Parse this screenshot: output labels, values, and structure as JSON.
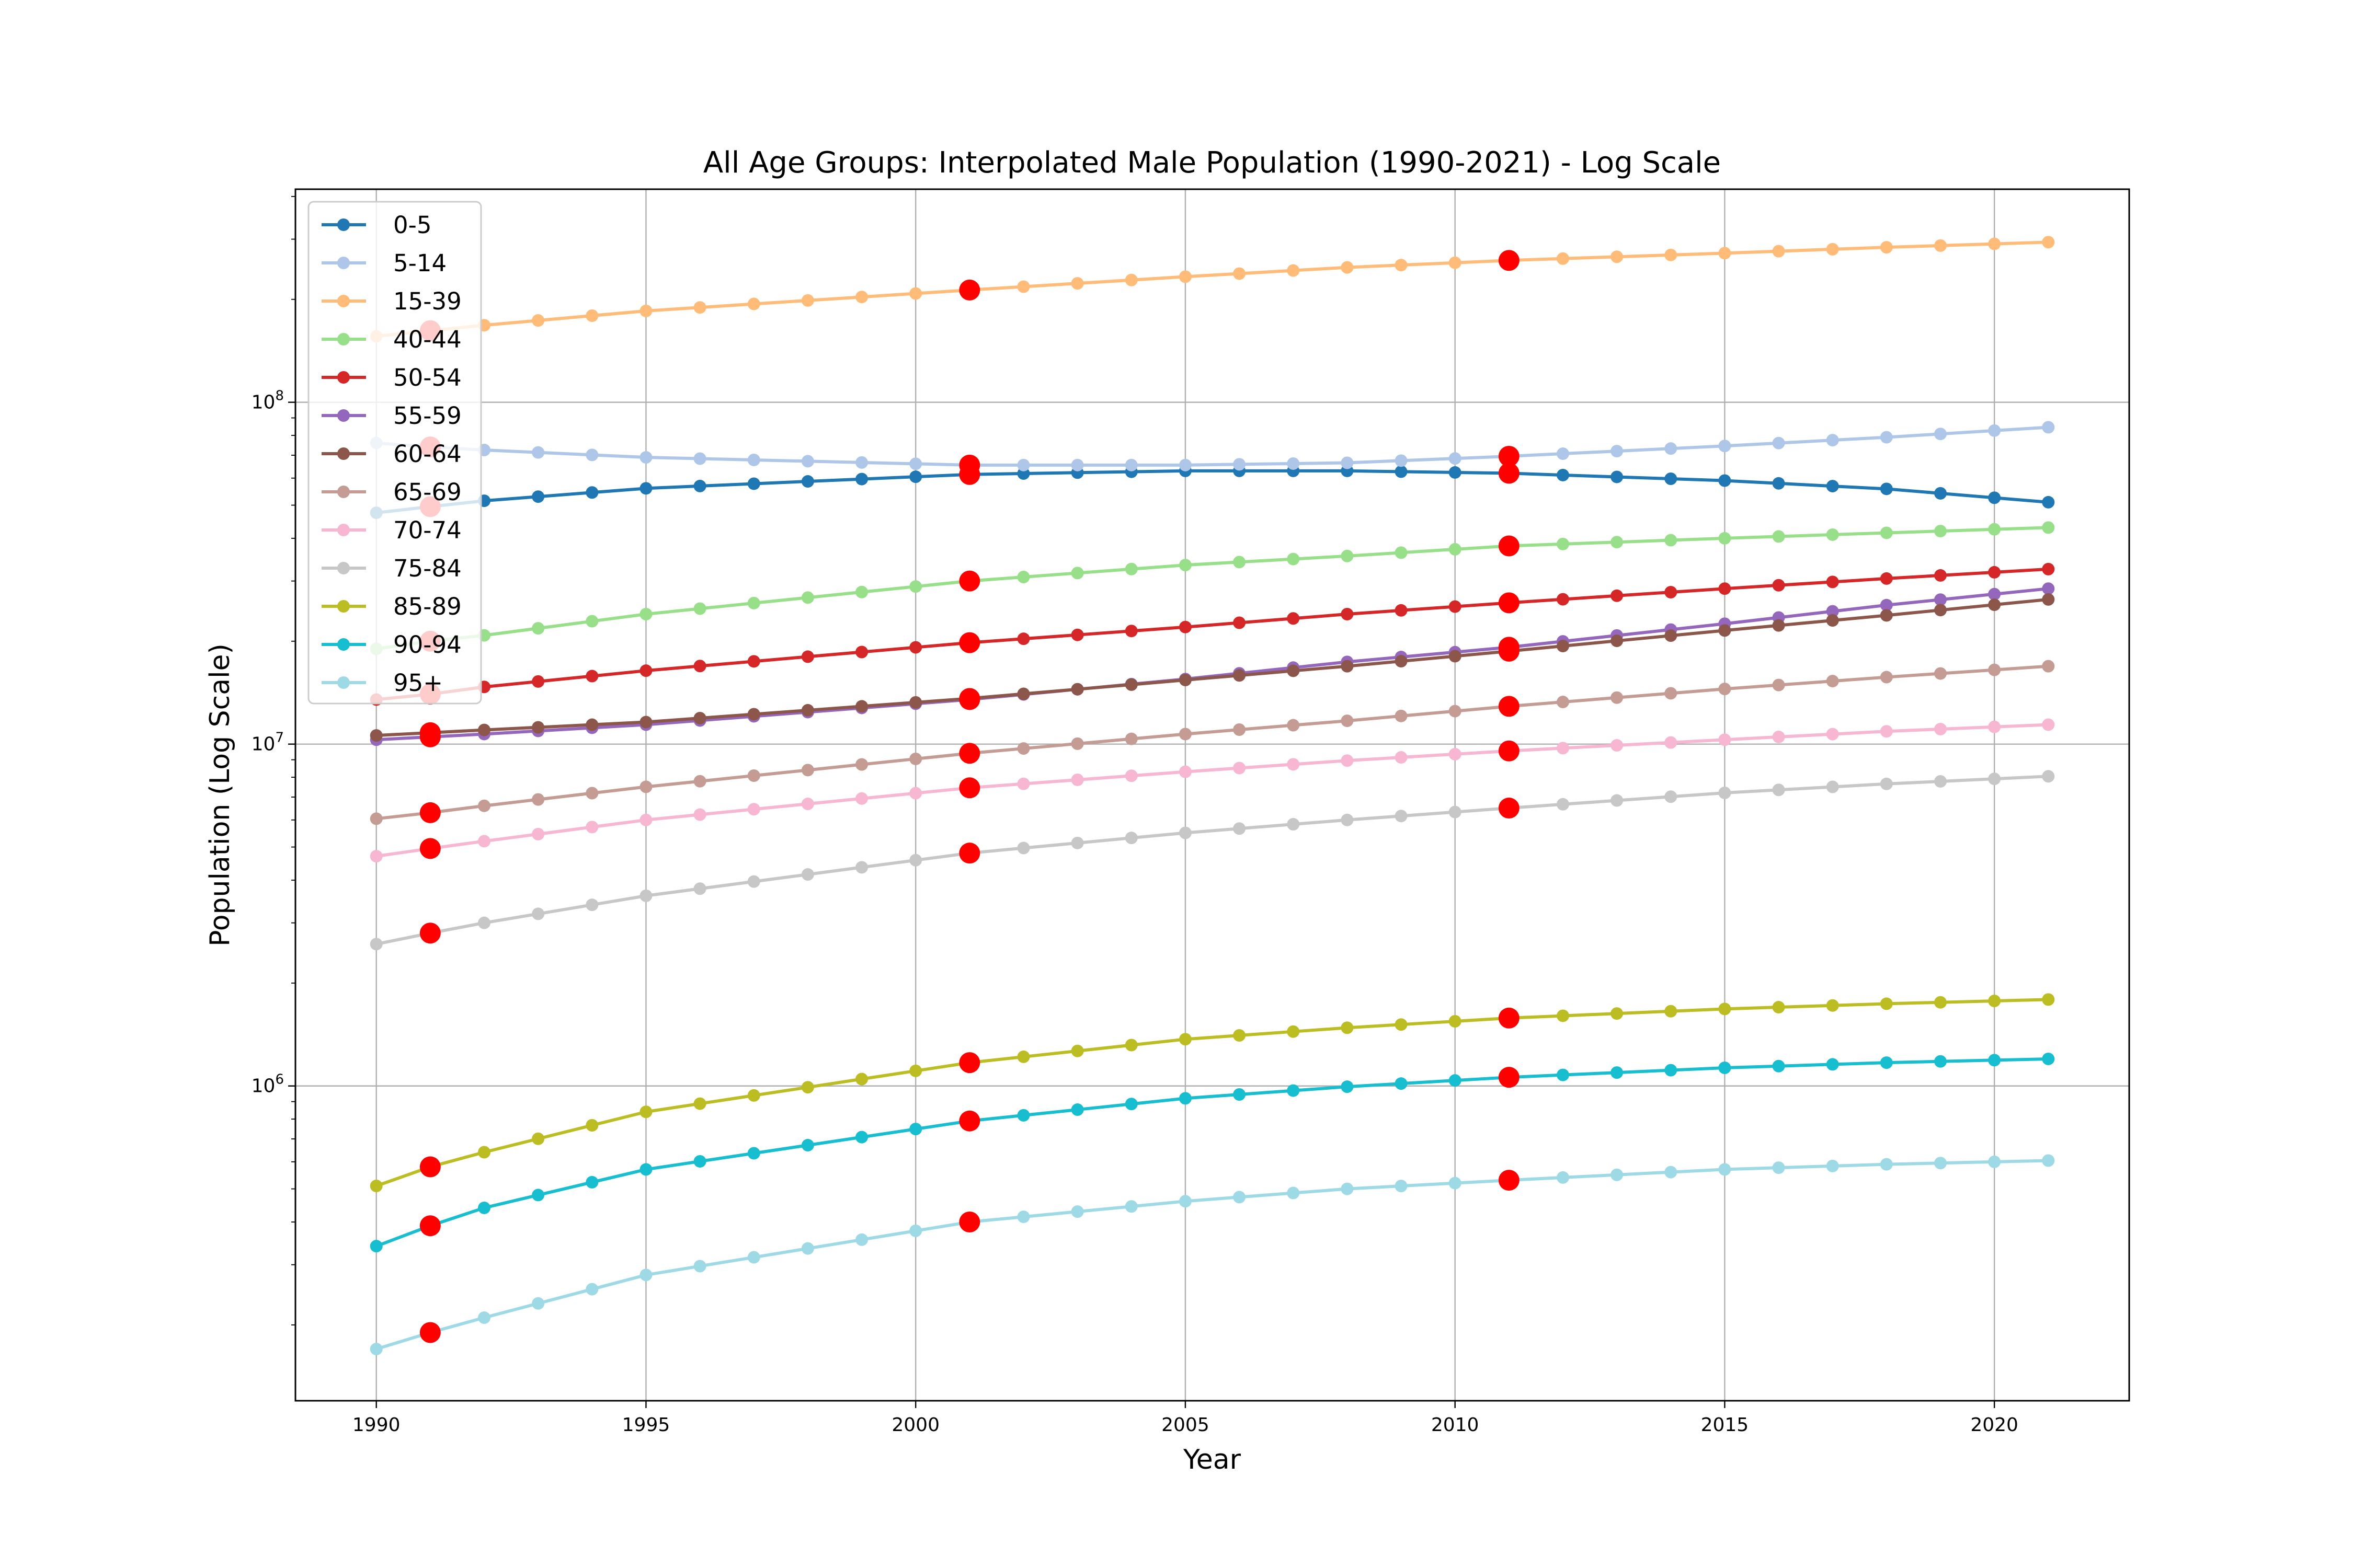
{
  "chart_data": {
    "type": "line",
    "title": "All Age Groups: Interpolated Male Population (1990-2021) - Log Scale",
    "xlabel": "Year",
    "ylabel": "Population (Log Scale)",
    "yscale": "log",
    "xlim": [
      1988.5,
      2022.5
    ],
    "ylim": [
      120000,
      420000000
    ],
    "x_ticks": [
      1990,
      1995,
      2000,
      2005,
      2010,
      2015,
      2020
    ],
    "y_ticks": [
      {
        "value": 1000000,
        "base": "10",
        "exp": "6"
      },
      {
        "value": 10000000,
        "base": "10",
        "exp": "7"
      },
      {
        "value": 100000000,
        "base": "10",
        "exp": "8"
      }
    ],
    "grid": true,
    "legend_position": "upper left",
    "x": [
      1990,
      1991,
      1992,
      1993,
      1994,
      1995,
      1996,
      1997,
      1998,
      1999,
      2000,
      2001,
      2002,
      2003,
      2004,
      2005,
      2006,
      2007,
      2008,
      2009,
      2010,
      2011,
      2012,
      2013,
      2014,
      2015,
      2016,
      2017,
      2018,
      2019,
      2020,
      2021
    ],
    "census_years": [
      1991,
      2001,
      2011
    ],
    "census_marker_color": "#ff0000",
    "series": [
      {
        "name": "0-5",
        "color": "#1f77b4",
        "anchors": [
          [
            1990,
            47500000
          ],
          [
            1991,
            49500000
          ],
          [
            1992,
            51500000
          ],
          [
            1995,
            56000000
          ],
          [
            2001,
            61500000
          ],
          [
            2005,
            63000000
          ],
          [
            2008,
            63000000
          ],
          [
            2011,
            62000000
          ],
          [
            2015,
            59000000
          ],
          [
            2018,
            55800000
          ],
          [
            2021,
            51000000
          ]
        ]
      },
      {
        "name": "5-14",
        "color": "#aec7e8",
        "anchors": [
          [
            1990,
            76000000
          ],
          [
            1991,
            74000000
          ],
          [
            1992,
            72500000
          ],
          [
            1995,
            69000000
          ],
          [
            2001,
            65500000
          ],
          [
            2005,
            65500000
          ],
          [
            2008,
            66500000
          ],
          [
            2011,
            69500000
          ],
          [
            2015,
            74500000
          ],
          [
            2018,
            79000000
          ],
          [
            2021,
            84500000
          ]
        ]
      },
      {
        "name": "15-39",
        "color": "#ffbb78",
        "anchors": [
          [
            1990,
            156000000
          ],
          [
            1991,
            162000000
          ],
          [
            1992,
            168000000
          ],
          [
            1995,
            185000000
          ],
          [
            2001,
            213000000
          ],
          [
            2005,
            233000000
          ],
          [
            2008,
            248000000
          ],
          [
            2011,
            260000000
          ],
          [
            2015,
            273000000
          ],
          [
            2018,
            284000000
          ],
          [
            2021,
            294000000
          ]
        ]
      },
      {
        "name": "40-44",
        "color": "#98df8a",
        "anchors": [
          [
            1990,
            19000000
          ],
          [
            1991,
            20000000
          ],
          [
            1992,
            20800000
          ],
          [
            1995,
            24000000
          ],
          [
            2001,
            30000000
          ],
          [
            2005,
            33400000
          ],
          [
            2008,
            35500000
          ],
          [
            2011,
            38000000
          ],
          [
            2015,
            40000000
          ],
          [
            2018,
            41500000
          ],
          [
            2021,
            43000000
          ]
        ]
      },
      {
        "name": "50-54",
        "color": "#d62728",
        "anchors": [
          [
            1990,
            13500000
          ],
          [
            1991,
            14000000
          ],
          [
            1992,
            14700000
          ],
          [
            1995,
            16400000
          ],
          [
            2001,
            19800000
          ],
          [
            2005,
            22000000
          ],
          [
            2008,
            24000000
          ],
          [
            2011,
            25900000
          ],
          [
            2015,
            28500000
          ],
          [
            2018,
            30500000
          ],
          [
            2021,
            32500000
          ]
        ]
      },
      {
        "name": "55-59",
        "color": "#9467bd",
        "anchors": [
          [
            1990,
            10300000
          ],
          [
            1991,
            10500000
          ],
          [
            1992,
            10700000
          ],
          [
            1995,
            11400000
          ],
          [
            2001,
            13500000
          ],
          [
            2005,
            15500000
          ],
          [
            2008,
            17400000
          ],
          [
            2011,
            19200000
          ],
          [
            2015,
            22500000
          ],
          [
            2018,
            25500000
          ],
          [
            2021,
            28500000
          ]
        ]
      },
      {
        "name": "60-64",
        "color": "#8c564b",
        "anchors": [
          [
            1990,
            10600000
          ],
          [
            1991,
            10800000
          ],
          [
            1992,
            11000000
          ],
          [
            1995,
            11600000
          ],
          [
            2001,
            13600000
          ],
          [
            2005,
            15400000
          ],
          [
            2008,
            16900000
          ],
          [
            2011,
            18700000
          ],
          [
            2015,
            21500000
          ],
          [
            2018,
            23800000
          ],
          [
            2021,
            26500000
          ]
        ]
      },
      {
        "name": "65-69",
        "color": "#c49c94",
        "anchors": [
          [
            1990,
            6050000
          ],
          [
            1991,
            6300000
          ],
          [
            1992,
            6600000
          ],
          [
            1995,
            7500000
          ],
          [
            2001,
            9400000
          ],
          [
            2005,
            10700000
          ],
          [
            2008,
            11700000
          ],
          [
            2011,
            12900000
          ],
          [
            2015,
            14500000
          ],
          [
            2018,
            15700000
          ],
          [
            2021,
            16900000
          ]
        ]
      },
      {
        "name": "70-74",
        "color": "#f7b6d2",
        "anchors": [
          [
            1990,
            4700000
          ],
          [
            1991,
            4950000
          ],
          [
            1992,
            5200000
          ],
          [
            1995,
            6000000
          ],
          [
            2001,
            7450000
          ],
          [
            2005,
            8300000
          ],
          [
            2008,
            8950000
          ],
          [
            2011,
            9550000
          ],
          [
            2015,
            10300000
          ],
          [
            2018,
            10900000
          ],
          [
            2021,
            11400000
          ]
        ]
      },
      {
        "name": "75-84",
        "color": "#c7c7c7",
        "anchors": [
          [
            1990,
            2600000
          ],
          [
            1991,
            2800000
          ],
          [
            1992,
            3000000
          ],
          [
            1995,
            3600000
          ],
          [
            2001,
            4800000
          ],
          [
            2005,
            5500000
          ],
          [
            2008,
            6000000
          ],
          [
            2011,
            6500000
          ],
          [
            2015,
            7200000
          ],
          [
            2018,
            7650000
          ],
          [
            2021,
            8050000
          ]
        ]
      },
      {
        "name": "85-89",
        "color": "#bcbd22",
        "anchors": [
          [
            1990,
            510000
          ],
          [
            1991,
            580000
          ],
          [
            1992,
            640000
          ],
          [
            1995,
            840000
          ],
          [
            2001,
            1170000
          ],
          [
            2005,
            1370000
          ],
          [
            2008,
            1480000
          ],
          [
            2011,
            1580000
          ],
          [
            2015,
            1680000
          ],
          [
            2018,
            1740000
          ],
          [
            2021,
            1790000
          ]
        ]
      },
      {
        "name": "90-94",
        "color": "#17becf",
        "anchors": [
          [
            1990,
            340000
          ],
          [
            1991,
            390000
          ],
          [
            1992,
            440000
          ],
          [
            1995,
            570000
          ],
          [
            2001,
            790000
          ],
          [
            2005,
            920000
          ],
          [
            2008,
            995000
          ],
          [
            2011,
            1060000
          ],
          [
            2015,
            1130000
          ],
          [
            2018,
            1170000
          ],
          [
            2021,
            1200000
          ]
        ]
      },
      {
        "name": "95+",
        "color": "#9edae5",
        "anchors": [
          [
            1990,
            170000
          ],
          [
            1991,
            190000
          ],
          [
            1992,
            210000
          ],
          [
            1995,
            280000
          ],
          [
            2001,
            400000
          ],
          [
            2005,
            460000
          ],
          [
            2008,
            500000
          ],
          [
            2011,
            530000
          ],
          [
            2015,
            570000
          ],
          [
            2018,
            590000
          ],
          [
            2021,
            605000
          ]
        ]
      }
    ]
  }
}
